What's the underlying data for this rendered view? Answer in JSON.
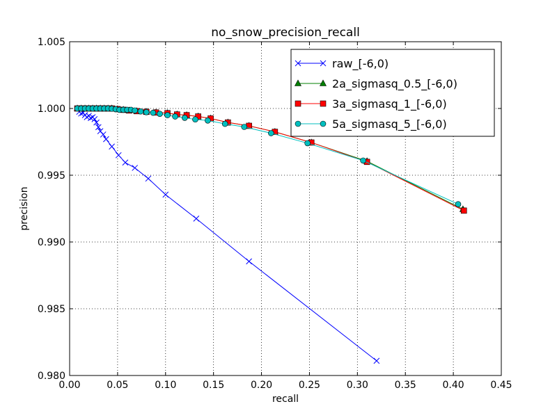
{
  "chart_data": {
    "type": "line",
    "title": "no_snow_precision_recall",
    "xlabel": "recall",
    "ylabel": "precision",
    "xlim": [
      0.0,
      0.45
    ],
    "ylim": [
      0.98,
      1.005
    ],
    "xticks": [
      0.0,
      0.05,
      0.1,
      0.15,
      0.2,
      0.25,
      0.3,
      0.35,
      0.4,
      0.45
    ],
    "xtick_labels": [
      "0.00",
      "0.05",
      "0.10",
      "0.15",
      "0.20",
      "0.25",
      "0.30",
      "0.35",
      "0.40",
      "0.45"
    ],
    "yticks": [
      0.98,
      0.985,
      0.99,
      0.995,
      1.0,
      1.005
    ],
    "ytick_labels": [
      "0.980",
      "0.985",
      "0.990",
      "0.995",
      "1.000",
      "1.005"
    ],
    "grid": true,
    "legend_position": "top-right",
    "series": [
      {
        "name": "raw_[-6,0)",
        "color": "#0000ff",
        "marker": "x",
        "points": [
          [
            0.008,
            1.0
          ],
          [
            0.01,
            0.99975
          ],
          [
            0.012,
            0.99962
          ],
          [
            0.014,
            0.99968
          ],
          [
            0.016,
            0.9995
          ],
          [
            0.018,
            0.99935
          ],
          [
            0.02,
            0.99945
          ],
          [
            0.022,
            0.99928
          ],
          [
            0.024,
            0.99935
          ],
          [
            0.026,
            0.9992
          ],
          [
            0.028,
            0.99895
          ],
          [
            0.03,
            0.9986
          ],
          [
            0.032,
            0.9983
          ],
          [
            0.035,
            0.99805
          ],
          [
            0.038,
            0.9977
          ],
          [
            0.044,
            0.99715
          ],
          [
            0.051,
            0.9965
          ],
          [
            0.058,
            0.99595
          ],
          [
            0.068,
            0.99555
          ],
          [
            0.082,
            0.99475
          ],
          [
            0.1,
            0.99355
          ],
          [
            0.132,
            0.99175
          ],
          [
            0.187,
            0.98855
          ],
          [
            0.32,
            0.9811
          ]
        ]
      },
      {
        "name": "2a_sigmasq_0.5_[-6,0)",
        "color": "#008000",
        "marker": "triangle",
        "points": [
          [
            0.008,
            1.0
          ],
          [
            0.012,
            1.0
          ],
          [
            0.016,
            1.0
          ],
          [
            0.02,
            1.0
          ],
          [
            0.024,
            1.0
          ],
          [
            0.028,
            1.0
          ],
          [
            0.032,
            1.0
          ],
          [
            0.036,
            1.0
          ],
          [
            0.04,
            1.0
          ],
          [
            0.044,
            1.0
          ],
          [
            0.05,
            0.99995
          ],
          [
            0.056,
            0.9999
          ],
          [
            0.062,
            0.99985
          ],
          [
            0.07,
            0.9998
          ],
          [
            0.08,
            0.99975
          ],
          [
            0.09,
            0.9997
          ],
          [
            0.102,
            0.99965
          ],
          [
            0.112,
            0.99955
          ],
          [
            0.122,
            0.9995
          ],
          [
            0.134,
            0.9994
          ],
          [
            0.147,
            0.99925
          ],
          [
            0.165,
            0.99895
          ],
          [
            0.187,
            0.9987
          ],
          [
            0.214,
            0.99825
          ],
          [
            0.252,
            0.99745
          ],
          [
            0.31,
            0.99605
          ],
          [
            0.41,
            0.99245
          ]
        ]
      },
      {
        "name": "3a_sigmasq_1_[-6,0)",
        "color": "#ff0000",
        "marker": "square",
        "points": [
          [
            0.008,
            1.0
          ],
          [
            0.012,
            1.0
          ],
          [
            0.016,
            1.0
          ],
          [
            0.02,
            1.0
          ],
          [
            0.024,
            1.0
          ],
          [
            0.028,
            1.0
          ],
          [
            0.032,
            1.0
          ],
          [
            0.036,
            1.0
          ],
          [
            0.04,
            1.0
          ],
          [
            0.044,
            1.0
          ],
          [
            0.05,
            0.99995
          ],
          [
            0.056,
            0.9999
          ],
          [
            0.062,
            0.99985
          ],
          [
            0.07,
            0.9998
          ],
          [
            0.08,
            0.99975
          ],
          [
            0.09,
            0.9997
          ],
          [
            0.102,
            0.99965
          ],
          [
            0.112,
            0.99955
          ],
          [
            0.122,
            0.9995
          ],
          [
            0.134,
            0.9994
          ],
          [
            0.147,
            0.99925
          ],
          [
            0.165,
            0.99895
          ],
          [
            0.187,
            0.9987
          ],
          [
            0.214,
            0.99825
          ],
          [
            0.252,
            0.99745
          ],
          [
            0.31,
            0.996
          ],
          [
            0.411,
            0.99235
          ]
        ]
      },
      {
        "name": "5a_sigmasq_5_[-6,0)",
        "color": "#00bfbf",
        "marker": "circle",
        "points": [
          [
            0.008,
            1.0
          ],
          [
            0.012,
            1.0
          ],
          [
            0.016,
            1.0
          ],
          [
            0.02,
            1.0
          ],
          [
            0.024,
            1.0
          ],
          [
            0.028,
            1.0
          ],
          [
            0.032,
            1.0
          ],
          [
            0.036,
            1.0
          ],
          [
            0.04,
            1.0
          ],
          [
            0.044,
            0.99998
          ],
          [
            0.048,
            0.99995
          ],
          [
            0.052,
            0.9999
          ],
          [
            0.056,
            0.9999
          ],
          [
            0.06,
            0.9999
          ],
          [
            0.064,
            0.9999
          ],
          [
            0.068,
            0.99985
          ],
          [
            0.074,
            0.99978
          ],
          [
            0.08,
            0.99972
          ],
          [
            0.087,
            0.99968
          ],
          [
            0.094,
            0.9996
          ],
          [
            0.102,
            0.9995
          ],
          [
            0.11,
            0.9994
          ],
          [
            0.12,
            0.9993
          ],
          [
            0.131,
            0.99918
          ],
          [
            0.144,
            0.9991
          ],
          [
            0.162,
            0.99885
          ],
          [
            0.182,
            0.99862
          ],
          [
            0.21,
            0.99815
          ],
          [
            0.248,
            0.9974
          ],
          [
            0.306,
            0.9961
          ],
          [
            0.405,
            0.99283
          ]
        ]
      }
    ]
  }
}
